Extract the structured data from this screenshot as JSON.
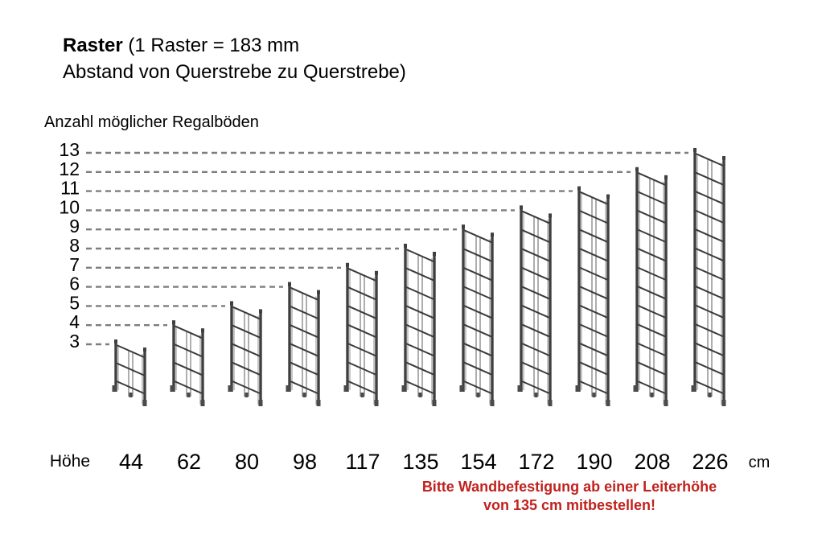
{
  "title": {
    "bold": "Raster",
    "rest": " (1 Raster = 183 mm",
    "line2": "Abstand von Querstrebe zu Querstrebe)"
  },
  "y_axis": {
    "label": "Anzahl möglicher Regalböden",
    "ticks": [
      13,
      12,
      11,
      10,
      9,
      8,
      7,
      6,
      5,
      4,
      3
    ]
  },
  "x_axis": {
    "label": "Höhe",
    "unit": "cm",
    "values": [
      44,
      62,
      80,
      98,
      117,
      135,
      154,
      172,
      190,
      208,
      226
    ]
  },
  "warning": {
    "line1": "Bitte Wandbefestigung ab einer Leiterhöhe",
    "line2": "von 135 cm mitbestellen!",
    "color": "#c0221e"
  },
  "colors": {
    "text": "#000000",
    "dash": "#7d7d7d",
    "post_dark": "#3f3f3f",
    "post_light": "#b3b3b3",
    "rung": "#3a3a3a",
    "strut": "#8c8c8c",
    "feet": "#4a4a4a",
    "background": "#ffffff"
  },
  "chart_data": {
    "type": "bar",
    "title": "Raster (1 Raster = 183 mm Abstand von Querstrebe zu Querstrebe)",
    "xlabel": "Höhe (cm)",
    "ylabel": "Anzahl möglicher Regalböden",
    "categories": [
      44,
      62,
      80,
      98,
      117,
      135,
      154,
      172,
      190,
      208,
      226
    ],
    "values": [
      3,
      4,
      5,
      6,
      7,
      8,
      9,
      10,
      11,
      12,
      13
    ],
    "ylim": [
      3,
      13
    ],
    "raster_mm": 183,
    "grid": "horizontal dashed leader lines at each integer level, each ending at the ladder whose top reaches that level",
    "bar_style": "pictorial shelving-ladder frames in slight 3D perspective",
    "legend_position": "none",
    "annotation": "Bitte Wandbefestigung ab einer Leiterhöhe von 135 cm mitbestellen!"
  }
}
